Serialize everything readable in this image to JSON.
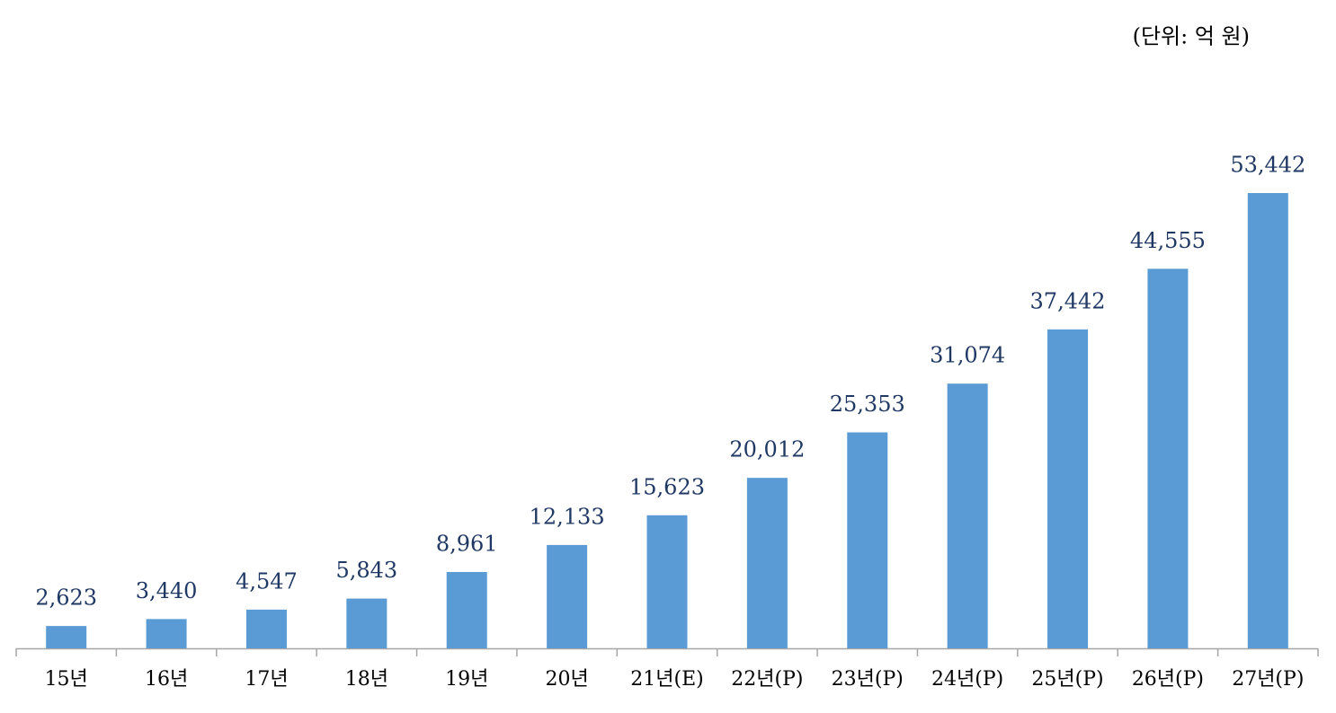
{
  "chart_data": {
    "type": "bar",
    "unit_note": "(단위: 억 원)",
    "categories": [
      "15년",
      "16년",
      "17년",
      "18년",
      "19년",
      "20년",
      "21년(E)",
      "22년(P)",
      "23년(P)",
      "24년(P)",
      "25년(P)",
      "26년(P)",
      "27년(P)"
    ],
    "values": [
      2623,
      3440,
      4547,
      5843,
      8961,
      12133,
      15623,
      20012,
      25353,
      31074,
      37442,
      44555,
      53442
    ],
    "value_labels": [
      "2,623",
      "3,440",
      "4,547",
      "5,843",
      "8,961",
      "12,133",
      "15,623",
      "20,012",
      "25,353",
      "31,074",
      "37,442",
      "44,555",
      "53,442"
    ],
    "color": "#5b9bd5"
  }
}
